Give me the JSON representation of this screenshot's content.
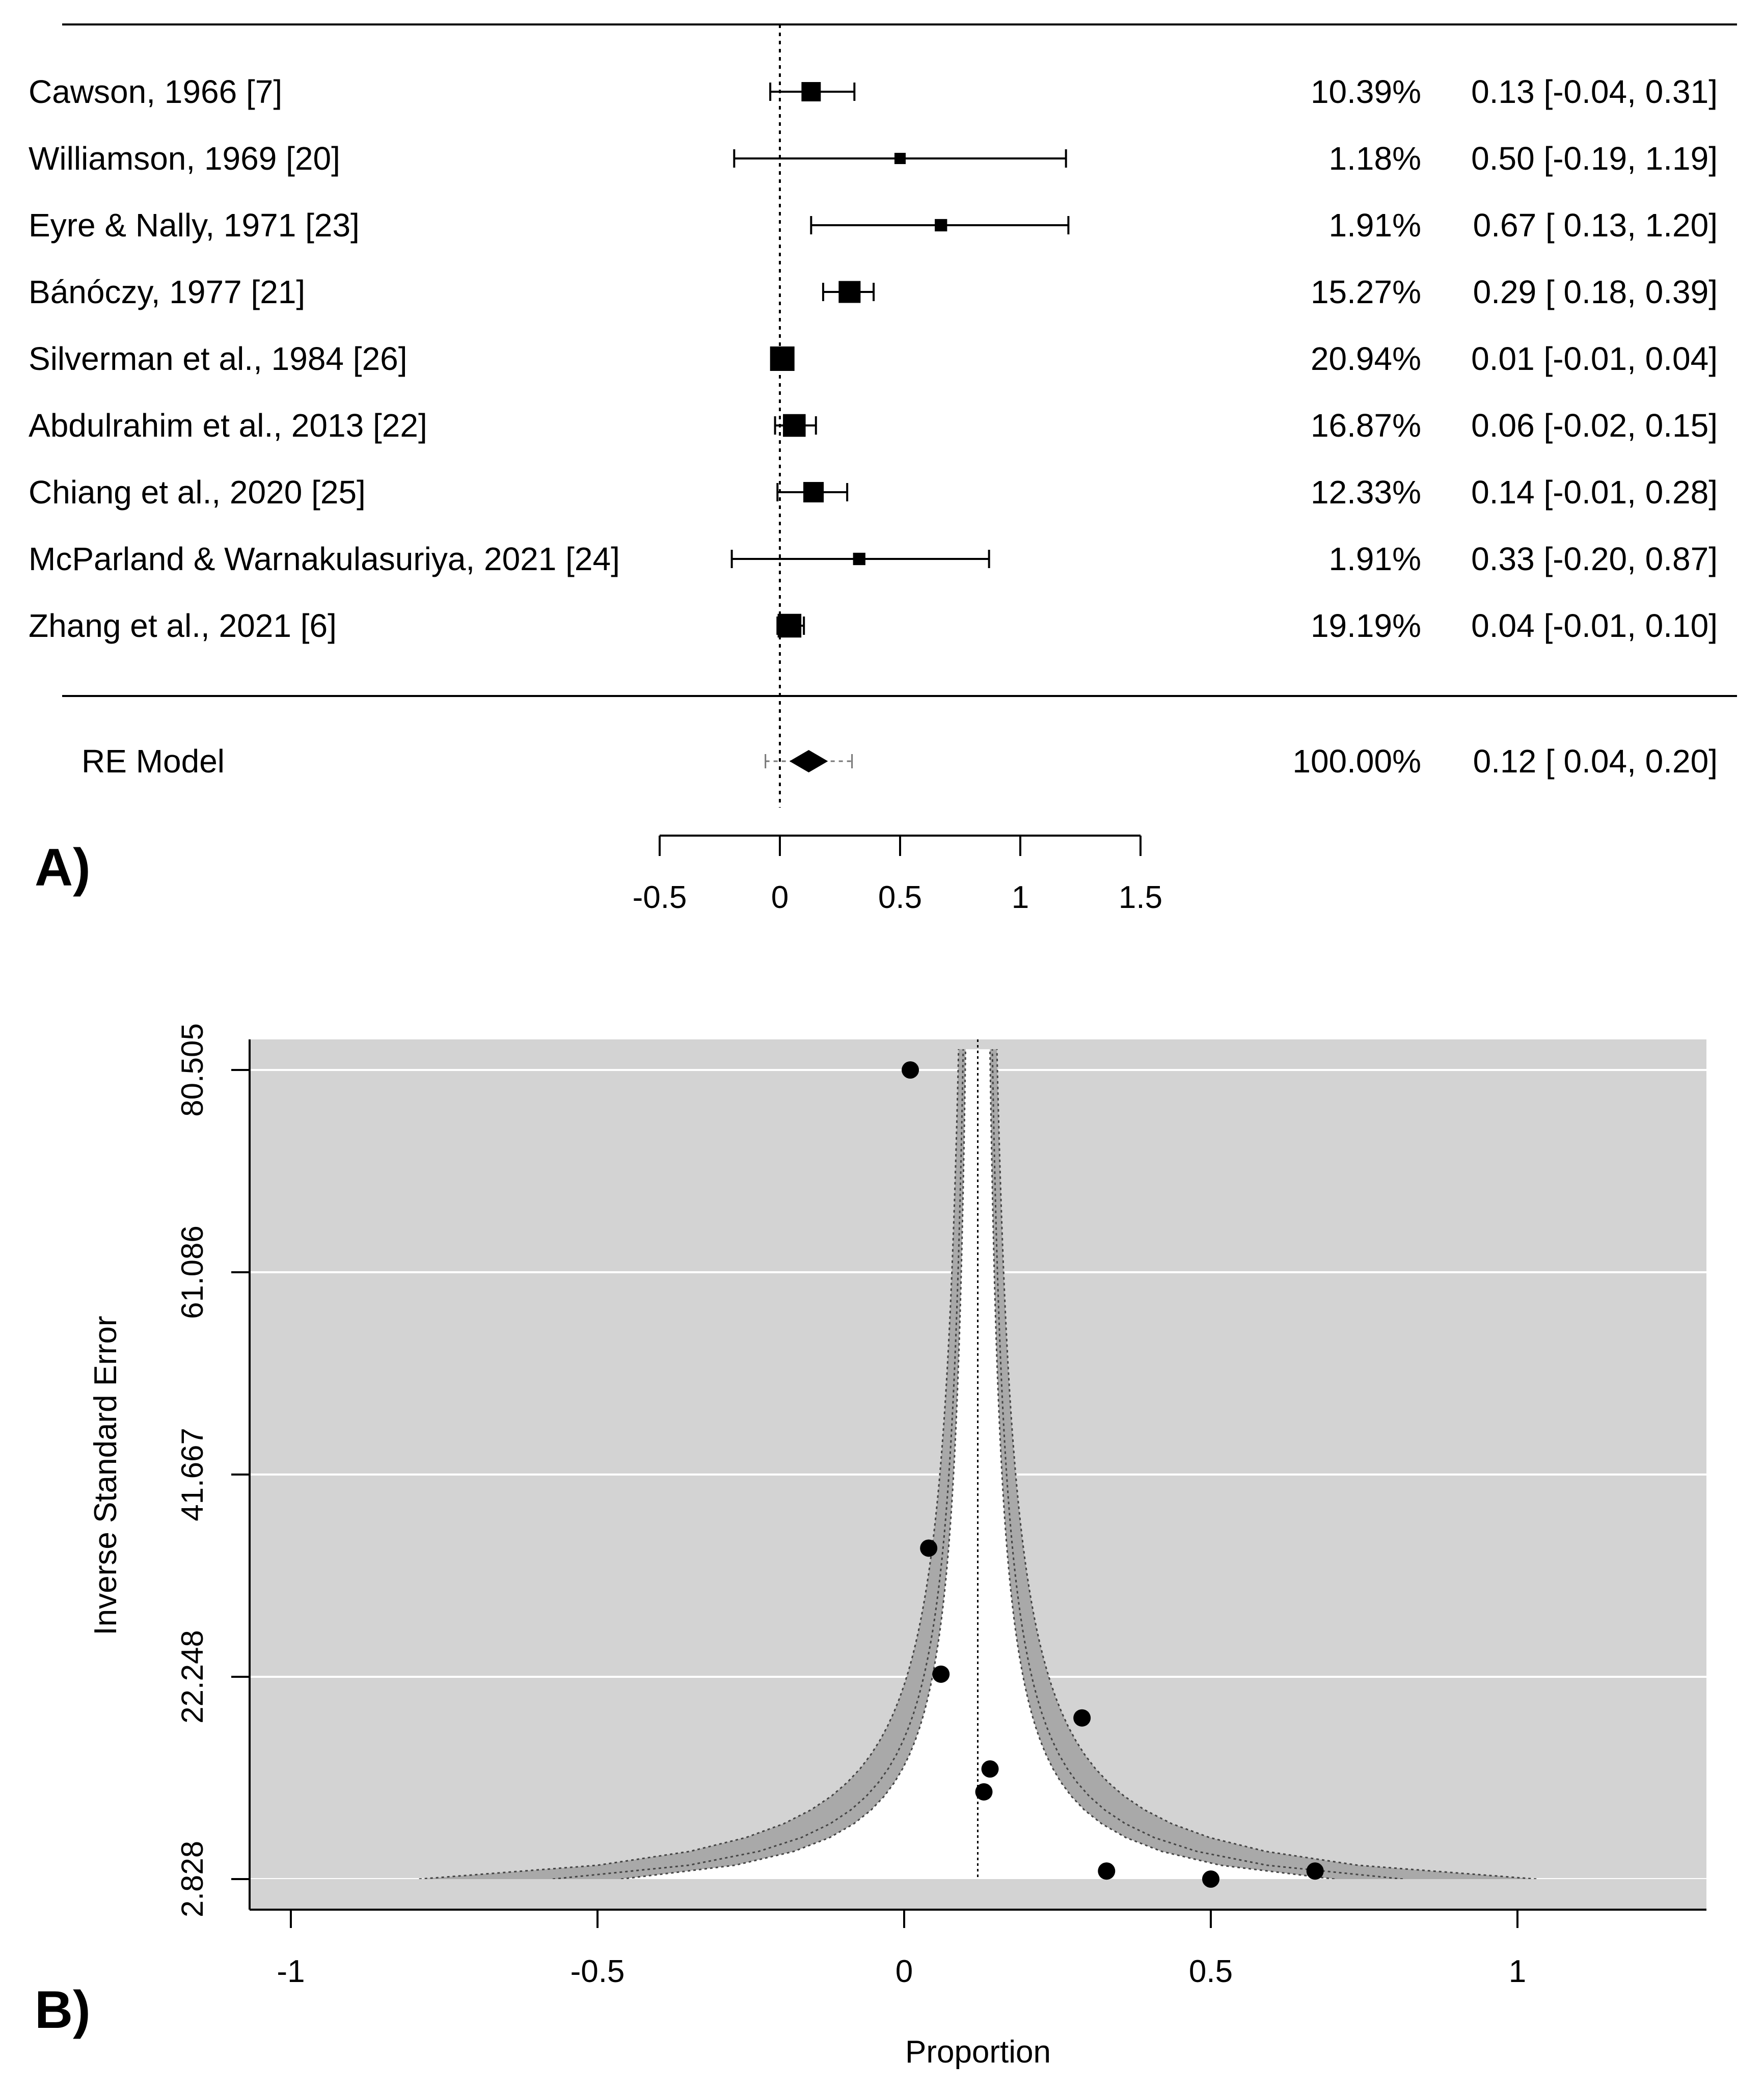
{
  "chart_data": [
    {
      "type": "forest",
      "panel_label": "A)",
      "xlim": [
        -0.5,
        1.5
      ],
      "xticks": [
        "-0.5",
        "0",
        "0.5",
        "1",
        "1.5"
      ],
      "xticks_values": [
        -0.5,
        0,
        0.5,
        1,
        1.5
      ],
      "reference_line": 0,
      "studies": [
        {
          "label": "Cawson, 1966 [7]",
          "weight": "10.39%",
          "ci_text": "0.13 [-0.04, 0.31]",
          "estimate": 0.13,
          "lower": -0.04,
          "upper": 0.31,
          "weight_value": 10.39
        },
        {
          "label": "Williamson, 1969 [20]",
          "weight": "1.18%",
          "ci_text": "0.50 [-0.19, 1.19]",
          "estimate": 0.5,
          "lower": -0.19,
          "upper": 1.19,
          "weight_value": 1.18
        },
        {
          "label": "Eyre & Nally, 1971 [23]",
          "weight": "1.91%",
          "ci_text": "0.67 [ 0.13, 1.20]",
          "estimate": 0.67,
          "lower": 0.13,
          "upper": 1.2,
          "weight_value": 1.91
        },
        {
          "label": "Bánóczy, 1977 [21]",
          "weight": "15.27%",
          "ci_text": "0.29 [ 0.18, 0.39]",
          "estimate": 0.29,
          "lower": 0.18,
          "upper": 0.39,
          "weight_value": 15.27
        },
        {
          "label": "Silverman et al., 1984  [26]",
          "weight": "20.94%",
          "ci_text": "0.01 [-0.01, 0.04]",
          "estimate": 0.01,
          "lower": -0.01,
          "upper": 0.04,
          "weight_value": 20.94
        },
        {
          "label": "Abdulrahim et al., 2013 [22]",
          "weight": "16.87%",
          "ci_text": "0.06 [-0.02, 0.15]",
          "estimate": 0.06,
          "lower": -0.02,
          "upper": 0.15,
          "weight_value": 16.87
        },
        {
          "label": "Chiang et al., 2020 [25]",
          "weight": "12.33%",
          "ci_text": "0.14 [-0.01, 0.28]",
          "estimate": 0.14,
          "lower": -0.01,
          "upper": 0.28,
          "weight_value": 12.33
        },
        {
          "label": "McParland & Warnakulasuriya, 2021 [24]",
          "weight": "1.91%",
          "ci_text": "0.33 [-0.20, 0.87]",
          "estimate": 0.33,
          "lower": -0.2,
          "upper": 0.87,
          "weight_value": 1.91
        },
        {
          "label": "Zhang et al., 2021 [6]",
          "weight": "19.19%",
          "ci_text": "0.04 [-0.01, 0.10]",
          "estimate": 0.04,
          "lower": -0.01,
          "upper": 0.1,
          "weight_value": 19.19
        }
      ],
      "summary": {
        "label": "RE Model",
        "weight": "100.00%",
        "ci_text": "0.12 [ 0.04, 0.20]",
        "estimate": 0.12,
        "lower": 0.04,
        "upper": 0.2,
        "pi_lower": -0.06,
        "pi_upper": 0.3
      }
    },
    {
      "type": "funnel",
      "panel_label": "B)",
      "xlabel": "Proportion",
      "ylabel": "Inverse Standard Error",
      "xlim": [
        -1.06,
        1.3
      ],
      "ylim": [
        2.828,
        82.5
      ],
      "xticks": [
        "-1",
        "-0.5",
        "0",
        "0.5",
        "1"
      ],
      "xticks_values": [
        -1,
        -0.5,
        0,
        0.5,
        1
      ],
      "yticks": [
        "2.828",
        "22.248",
        "41.667",
        "61.086",
        "80.505"
      ],
      "yticks_values": [
        2.828,
        22.248,
        41.667,
        61.086,
        80.505
      ],
      "center": 0.12,
      "contours": [
        1.645,
        1.96,
        2.576
      ],
      "points": [
        {
          "x": 0.01,
          "y": 80.505
        },
        {
          "x": 0.04,
          "y": 34.6
        },
        {
          "x": 0.06,
          "y": 22.5
        },
        {
          "x": 0.29,
          "y": 18.3
        },
        {
          "x": 0.14,
          "y": 13.4
        },
        {
          "x": 0.13,
          "y": 11.2
        },
        {
          "x": 0.33,
          "y": 3.6
        },
        {
          "x": 0.5,
          "y": 2.828
        },
        {
          "x": 0.67,
          "y": 3.6
        }
      ]
    }
  ]
}
